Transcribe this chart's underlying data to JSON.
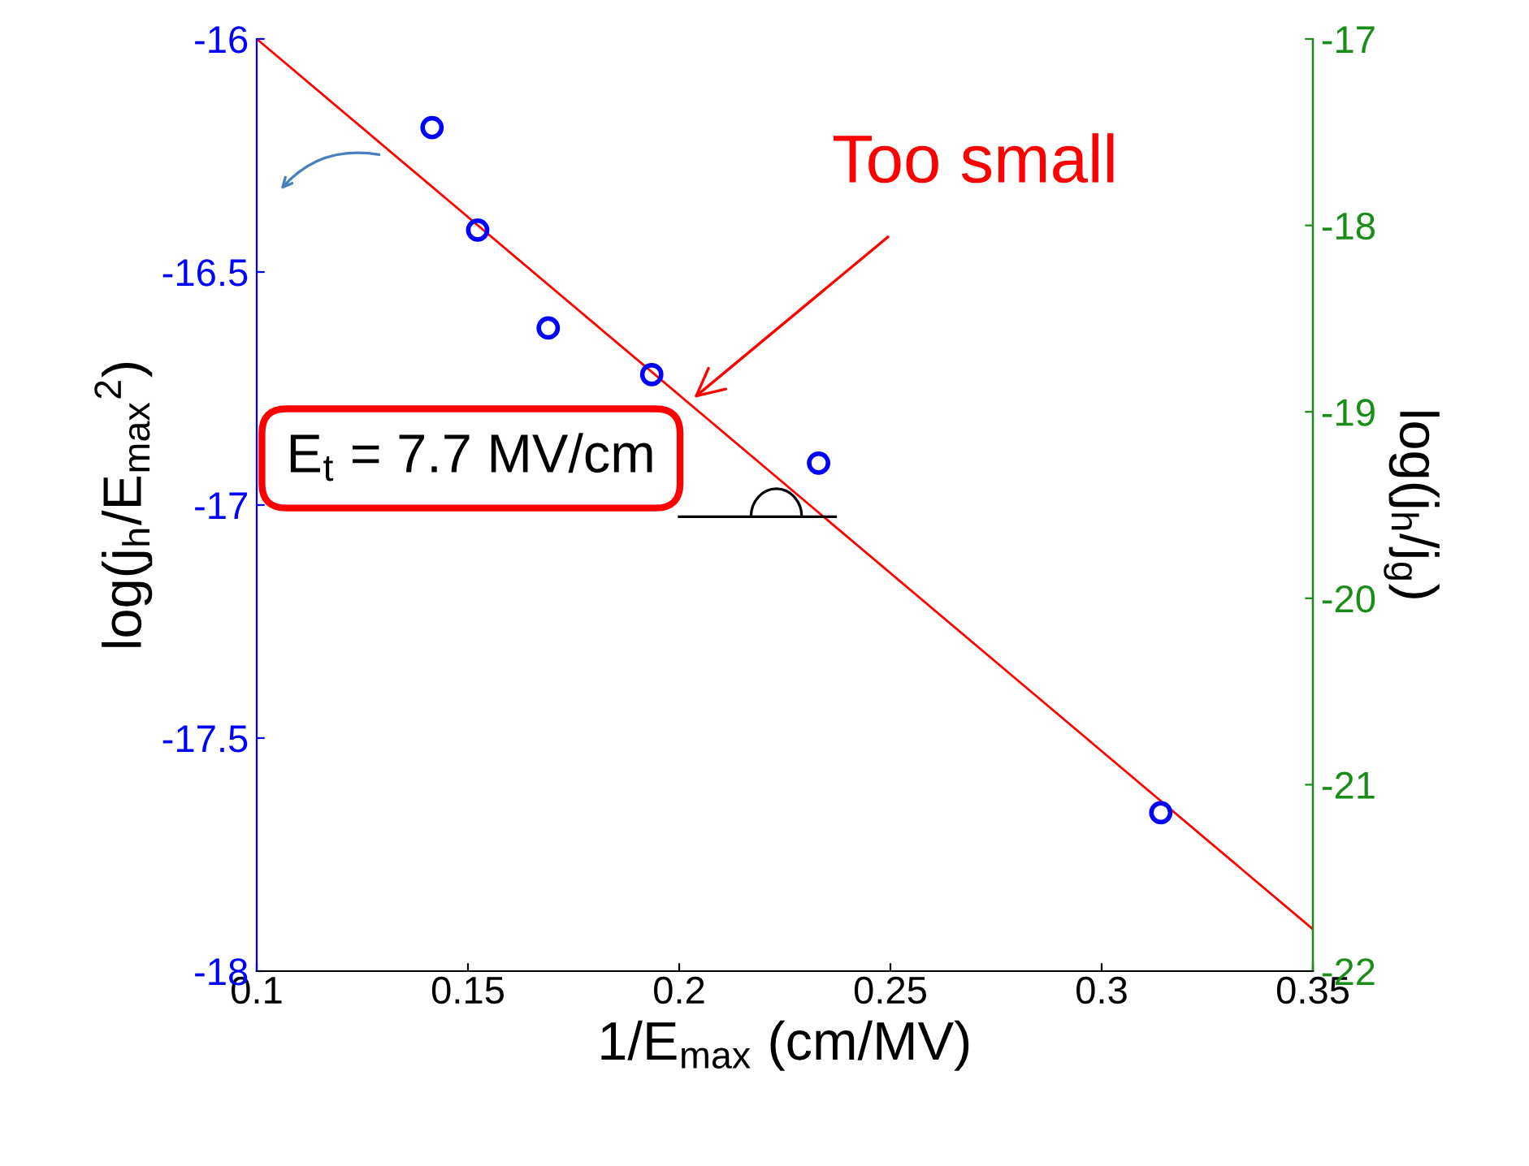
{
  "chart_data": {
    "type": "scatter",
    "xlabel": "1/E$_{max}$ (cm/MV)",
    "ylabel": "log(j$_{h}$/E$_{max}$$^{2}$)",
    "y2label": "log(j$_{h}$/j$_{g}$)",
    "x": [
      0.1415,
      0.1523,
      0.169,
      0.1935,
      0.233,
      0.314
    ],
    "series": [
      {
        "color": "#0000ff",
        "marker": "circle",
        "values": [
          -16.19,
          -16.41,
          -16.62,
          -16.72,
          -16.91,
          -17.66
        ]
      },
      {
        "type": "line",
        "color": "#ff0000",
        "x": [
          0.1,
          0.35
        ],
        "values": [
          -16.0,
          -17.91
        ]
      }
    ],
    "xlim": [
      0.1,
      0.35
    ],
    "xticks": [
      0.1,
      0.15,
      0.2,
      0.25,
      0.3,
      0.35
    ],
    "ylim": [
      -18,
      -16
    ],
    "yticks": [
      -18,
      -17.5,
      -17,
      -16.5,
      -16
    ],
    "y2lim": [
      -22,
      -17
    ],
    "y2ticks": [
      -22,
      -21,
      -20,
      -19,
      -18,
      -17
    ],
    "grid": false,
    "annotations": [
      {
        "text": "Too small",
        "x": 0.2035,
        "y": -16.77
      },
      "E$_{t}$ = 7.7 MV/cm"
    ]
  }
}
